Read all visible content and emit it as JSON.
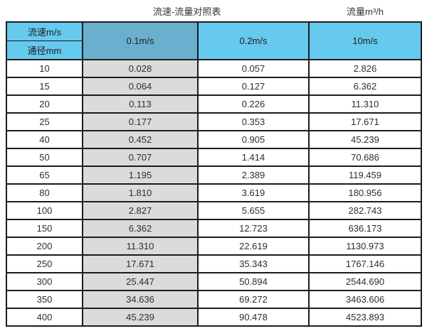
{
  "header": {
    "table_title": "流速-流量对照表",
    "unit_label": "流量m³/h"
  },
  "table": {
    "header": {
      "corner_top": "流速m/s",
      "corner_bottom": "通径mm",
      "velocity_columns": [
        "0.1m/s",
        "0.2m/s",
        "10m/s"
      ]
    },
    "rows": [
      {
        "dn": "10",
        "values": [
          "0.028",
          "0.057",
          "2.826"
        ]
      },
      {
        "dn": "15",
        "values": [
          "0.064",
          "0.127",
          "6.362"
        ]
      },
      {
        "dn": "20",
        "values": [
          "0.113",
          "0.226",
          "11.310"
        ]
      },
      {
        "dn": "25",
        "values": [
          "0.177",
          "0.353",
          "17.671"
        ]
      },
      {
        "dn": "40",
        "values": [
          "0.452",
          "0.905",
          "45.239"
        ]
      },
      {
        "dn": "50",
        "values": [
          "0.707",
          "1.414",
          "70.686"
        ]
      },
      {
        "dn": "65",
        "values": [
          "1.195",
          "2.389",
          "119.459"
        ]
      },
      {
        "dn": "80",
        "values": [
          "1.810",
          "3.619",
          "180.956"
        ]
      },
      {
        "dn": "100",
        "values": [
          "2.827",
          "5.655",
          "282.743"
        ]
      },
      {
        "dn": "150",
        "values": [
          "6.362",
          "12.723",
          "636.173"
        ]
      },
      {
        "dn": "200",
        "values": [
          "11.310",
          "22.619",
          "1130.973"
        ]
      },
      {
        "dn": "250",
        "values": [
          "17.671",
          "35.343",
          "1767.146"
        ]
      },
      {
        "dn": "300",
        "values": [
          "25.447",
          "50.894",
          "2544.690"
        ]
      },
      {
        "dn": "350",
        "values": [
          "34.636",
          "69.272",
          "3463.606"
        ]
      },
      {
        "dn": "400",
        "values": [
          "45.239",
          "90.478",
          "4523.893"
        ]
      }
    ]
  },
  "colors": {
    "header_blue": "#66C9EE",
    "highlight_header_blue": "#6BAFCF",
    "highlight_column_gray": "#DBDBDB",
    "grid_border": "#1C1C1C",
    "text": "#2E2E2E"
  }
}
